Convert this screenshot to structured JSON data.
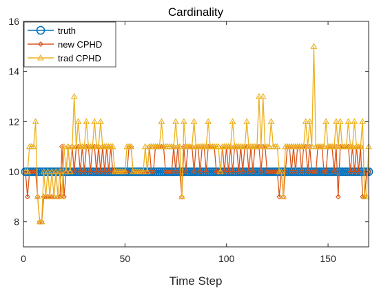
{
  "chart_data": {
    "type": "line",
    "title": "Cardinality",
    "xlabel": "Time Step",
    "ylabel": "",
    "xlim": [
      0,
      170
    ],
    "ylim": [
      7,
      16
    ],
    "xticks": [
      0,
      50,
      100,
      150
    ],
    "yticks": [
      8,
      10,
      12,
      14,
      16
    ],
    "grid": false,
    "legend_position": "top-left",
    "x": [
      1,
      2,
      3,
      4,
      5,
      6,
      7,
      8,
      9,
      10,
      11,
      12,
      13,
      14,
      15,
      16,
      17,
      18,
      19,
      20,
      21,
      22,
      23,
      24,
      25,
      26,
      27,
      28,
      29,
      30,
      31,
      32,
      33,
      34,
      35,
      36,
      37,
      38,
      39,
      40,
      41,
      42,
      43,
      44,
      45,
      46,
      47,
      48,
      49,
      50,
      51,
      52,
      53,
      54,
      55,
      56,
      57,
      58,
      59,
      60,
      61,
      62,
      63,
      64,
      65,
      66,
      67,
      68,
      69,
      70,
      71,
      72,
      73,
      74,
      75,
      76,
      77,
      78,
      79,
      80,
      81,
      82,
      83,
      84,
      85,
      86,
      87,
      88,
      89,
      90,
      91,
      92,
      93,
      94,
      95,
      96,
      97,
      98,
      99,
      100,
      101,
      102,
      103,
      104,
      105,
      106,
      107,
      108,
      109,
      110,
      111,
      112,
      113,
      114,
      115,
      116,
      117,
      118,
      119,
      120,
      121,
      122,
      123,
      124,
      125,
      126,
      127,
      128,
      129,
      130,
      131,
      132,
      133,
      134,
      135,
      136,
      137,
      138,
      139,
      140,
      141,
      142,
      143,
      144,
      145,
      146,
      147,
      148,
      149,
      150,
      151,
      152,
      153,
      154,
      155,
      156,
      157,
      158,
      159,
      160,
      161,
      162,
      163,
      164,
      165,
      166,
      167,
      168,
      169,
      170
    ],
    "series": [
      {
        "name": "truth",
        "color": "#0072BD",
        "marker": "circle",
        "values": [
          10,
          10,
          10,
          10,
          10,
          10,
          10,
          10,
          10,
          10,
          10,
          10,
          10,
          10,
          10,
          10,
          10,
          10,
          10,
          10,
          10,
          10,
          10,
          10,
          10,
          10,
          10,
          10,
          10,
          10,
          10,
          10,
          10,
          10,
          10,
          10,
          10,
          10,
          10,
          10,
          10,
          10,
          10,
          10,
          10,
          10,
          10,
          10,
          10,
          10,
          10,
          10,
          10,
          10,
          10,
          10,
          10,
          10,
          10,
          10,
          10,
          10,
          10,
          10,
          10,
          10,
          10,
          10,
          10,
          10,
          10,
          10,
          10,
          10,
          10,
          10,
          10,
          10,
          10,
          10,
          10,
          10,
          10,
          10,
          10,
          10,
          10,
          10,
          10,
          10,
          10,
          10,
          10,
          10,
          10,
          10,
          10,
          10,
          10,
          10,
          10,
          10,
          10,
          10,
          10,
          10,
          10,
          10,
          10,
          10,
          10,
          10,
          10,
          10,
          10,
          10,
          10,
          10,
          10,
          10,
          10,
          10,
          10,
          10,
          10,
          10,
          10,
          10,
          10,
          10,
          10,
          10,
          10,
          10,
          10,
          10,
          10,
          10,
          10,
          10,
          10,
          10,
          10,
          10,
          10,
          10,
          10,
          10,
          10,
          10,
          10,
          10,
          10,
          10,
          10,
          10,
          10,
          10,
          10,
          10,
          10,
          10,
          10,
          10,
          10,
          10,
          10,
          10,
          10,
          10
        ]
      },
      {
        "name": "new CPHD",
        "color": "#D95319",
        "marker": "diamond",
        "values": [
          10,
          9,
          10,
          10,
          10,
          10,
          9,
          8,
          8,
          9,
          9,
          9,
          9,
          9,
          9,
          10,
          9,
          9,
          11,
          9,
          10,
          11,
          10,
          11,
          10,
          11,
          11,
          10,
          11,
          10,
          11,
          11,
          10,
          11,
          11,
          10,
          11,
          10,
          11,
          10,
          11,
          10,
          11,
          10,
          10,
          10,
          10,
          10,
          10,
          10,
          10,
          11,
          11,
          10,
          10,
          10,
          10,
          10,
          10,
          10,
          10,
          11,
          10,
          10,
          11,
          11,
          11,
          11,
          11,
          10,
          10,
          10,
          10,
          11,
          10,
          11,
          10,
          9,
          11,
          10,
          11,
          11,
          11,
          10,
          11,
          11,
          10,
          11,
          11,
          10,
          11,
          11,
          11,
          11,
          10,
          10,
          10,
          11,
          10,
          11,
          10,
          11,
          10,
          11,
          11,
          10,
          11,
          10,
          11,
          11,
          10,
          11,
          10,
          11,
          11,
          11,
          10,
          11,
          11,
          10,
          10,
          10,
          10,
          10,
          10,
          9,
          10,
          9,
          10,
          11,
          11,
          10,
          11,
          10,
          11,
          11,
          10,
          11,
          11,
          10,
          11,
          10,
          10,
          10,
          11,
          11,
          11,
          10,
          10,
          11,
          11,
          11,
          10,
          11,
          9,
          11,
          11,
          11,
          11,
          11,
          10,
          11,
          10,
          11,
          10,
          11,
          9,
          9,
          10,
          10
        ]
      },
      {
        "name": "trad CPHD",
        "color": "#EDB120",
        "marker": "triangle",
        "values": [
          10,
          10,
          11,
          11,
          11,
          12,
          9,
          8,
          8,
          10,
          9,
          10,
          9,
          10,
          9,
          10,
          9,
          10,
          9,
          11,
          10,
          11,
          10,
          11,
          13,
          11,
          12,
          11,
          11,
          11,
          12,
          11,
          11,
          11,
          12,
          11,
          11,
          12,
          11,
          11,
          11,
          11,
          11,
          11,
          10,
          10,
          10,
          10,
          10,
          10,
          11,
          11,
          11,
          10,
          10,
          10,
          10,
          10,
          10,
          11,
          10,
          11,
          11,
          11,
          11,
          11,
          11,
          12,
          11,
          11,
          11,
          11,
          11,
          11,
          12,
          11,
          11,
          9,
          12,
          11,
          11,
          11,
          11,
          12,
          11,
          11,
          11,
          11,
          11,
          11,
          12,
          11,
          11,
          11,
          11,
          11,
          10,
          11,
          11,
          11,
          11,
          11,
          12,
          11,
          11,
          11,
          11,
          11,
          11,
          12,
          11,
          11,
          11,
          11,
          11,
          13,
          11,
          13,
          11,
          11,
          11,
          12,
          11,
          11,
          11,
          10,
          10,
          9,
          11,
          11,
          11,
          11,
          11,
          11,
          11,
          11,
          11,
          11,
          12,
          11,
          12,
          11,
          15,
          11,
          11,
          11,
          11,
          11,
          12,
          11,
          11,
          11,
          11,
          12,
          11,
          12,
          11,
          11,
          11,
          12,
          11,
          11,
          12,
          11,
          11,
          11,
          12,
          9,
          9,
          11
        ]
      }
    ]
  }
}
